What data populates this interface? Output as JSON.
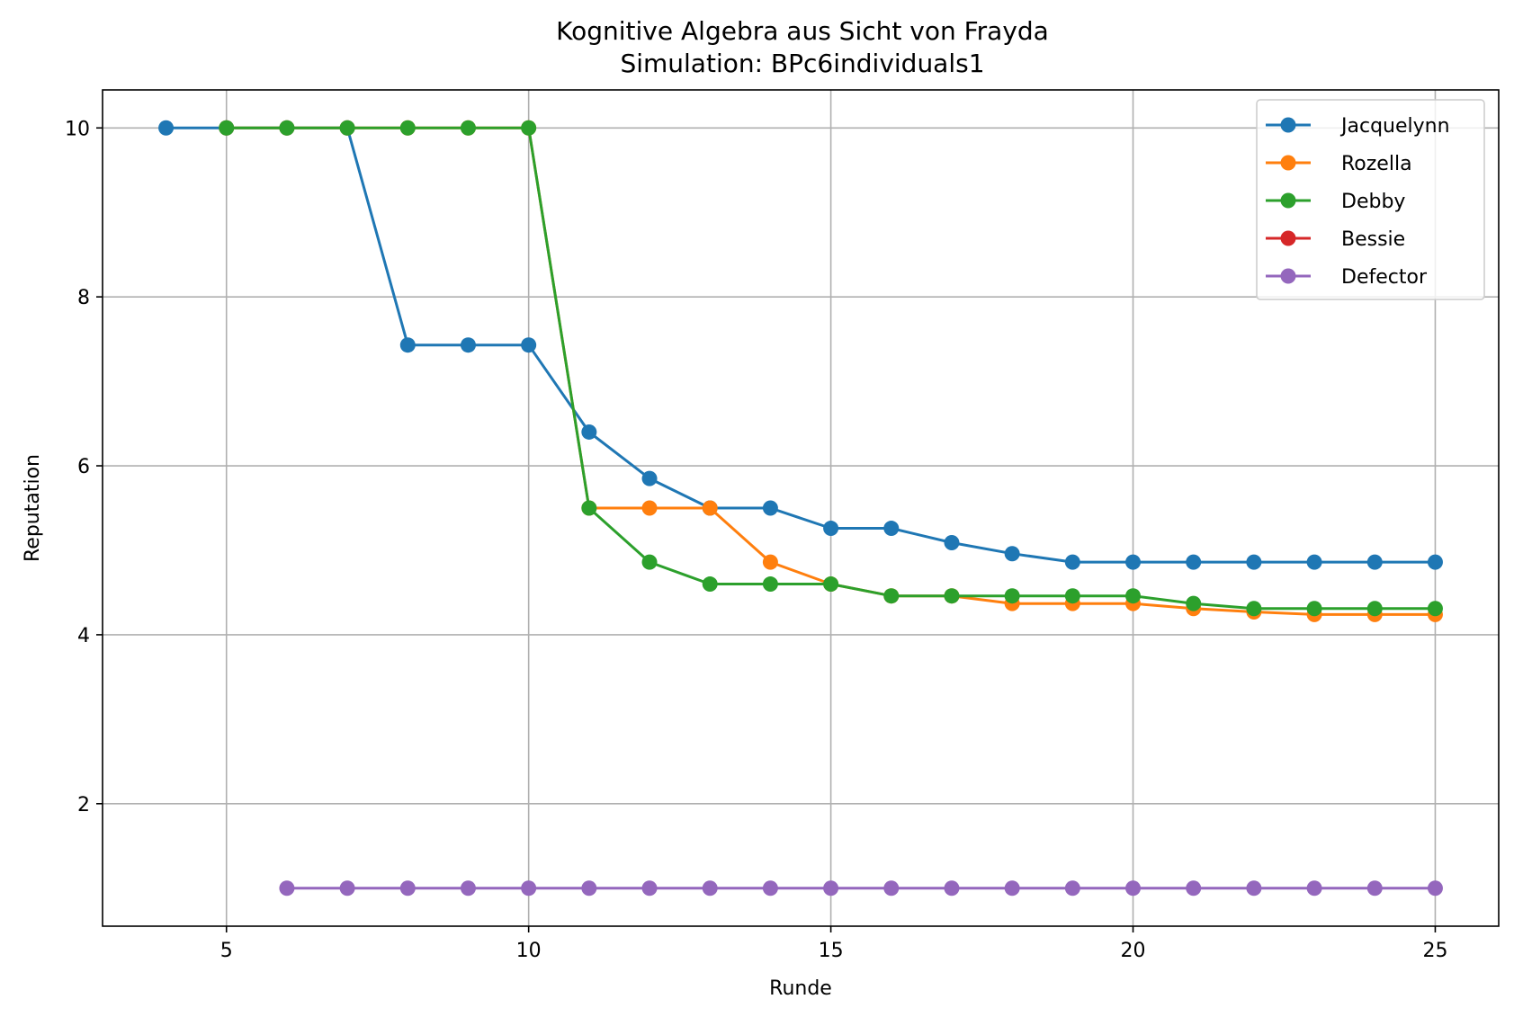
{
  "chart_data": {
    "type": "line",
    "title": "Kognitive Algebra aus Sicht von Frayda",
    "subtitle": "Simulation: BPc6individuals1",
    "xlabel": "Runde",
    "ylabel": "Reputation",
    "xlim": [
      2.95,
      26.05
    ],
    "ylim": [
      0.55,
      10.45
    ],
    "xticks": [
      5,
      10,
      15,
      20,
      25
    ],
    "yticks": [
      2,
      4,
      6,
      8,
      10
    ],
    "grid": true,
    "legend_position": "top-right",
    "series": [
      {
        "name": "Jacquelynn",
        "color": "#1f77b4",
        "x": [
          4,
          5,
          6,
          7,
          8,
          9,
          10,
          11,
          12,
          13,
          14,
          15,
          16,
          17,
          18,
          19,
          20,
          21,
          22,
          23,
          24,
          25
        ],
        "y": [
          10,
          10,
          10,
          10,
          7.43,
          7.43,
          7.43,
          6.4,
          5.85,
          5.5,
          5.5,
          5.26,
          5.26,
          5.09,
          4.96,
          4.86,
          4.86,
          4.86,
          4.86,
          4.86,
          4.86,
          4.86
        ]
      },
      {
        "name": "Rozella",
        "color": "#ff7f0e",
        "x": [
          5,
          6,
          7,
          8,
          9,
          10,
          11,
          12,
          13,
          14,
          15,
          16,
          17,
          18,
          19,
          20,
          21,
          22,
          23,
          24,
          25
        ],
        "y": [
          10,
          10,
          10,
          10,
          10,
          10,
          5.5,
          5.5,
          5.5,
          4.86,
          4.6,
          4.46,
          4.46,
          4.37,
          4.37,
          4.37,
          4.31,
          4.27,
          4.24,
          4.24,
          4.24
        ]
      },
      {
        "name": "Debby",
        "color": "#2ca02c",
        "x": [
          5,
          6,
          7,
          8,
          9,
          10,
          11,
          12,
          13,
          14,
          15,
          16,
          17,
          18,
          19,
          20,
          21,
          22,
          23,
          24,
          25
        ],
        "y": [
          10,
          10,
          10,
          10,
          10,
          10,
          5.5,
          4.86,
          4.6,
          4.6,
          4.6,
          4.46,
          4.46,
          4.46,
          4.46,
          4.46,
          4.37,
          4.31,
          4.31,
          4.31,
          4.31
        ]
      },
      {
        "name": "Bessie",
        "color": "#d62728",
        "x": [],
        "y": []
      },
      {
        "name": "Defector",
        "color": "#9467bd",
        "x": [
          6,
          7,
          8,
          9,
          10,
          11,
          12,
          13,
          14,
          15,
          16,
          17,
          18,
          19,
          20,
          21,
          22,
          23,
          24,
          25
        ],
        "y": [
          1,
          1,
          1,
          1,
          1,
          1,
          1,
          1,
          1,
          1,
          1,
          1,
          1,
          1,
          1,
          1,
          1,
          1,
          1,
          1
        ]
      }
    ]
  }
}
